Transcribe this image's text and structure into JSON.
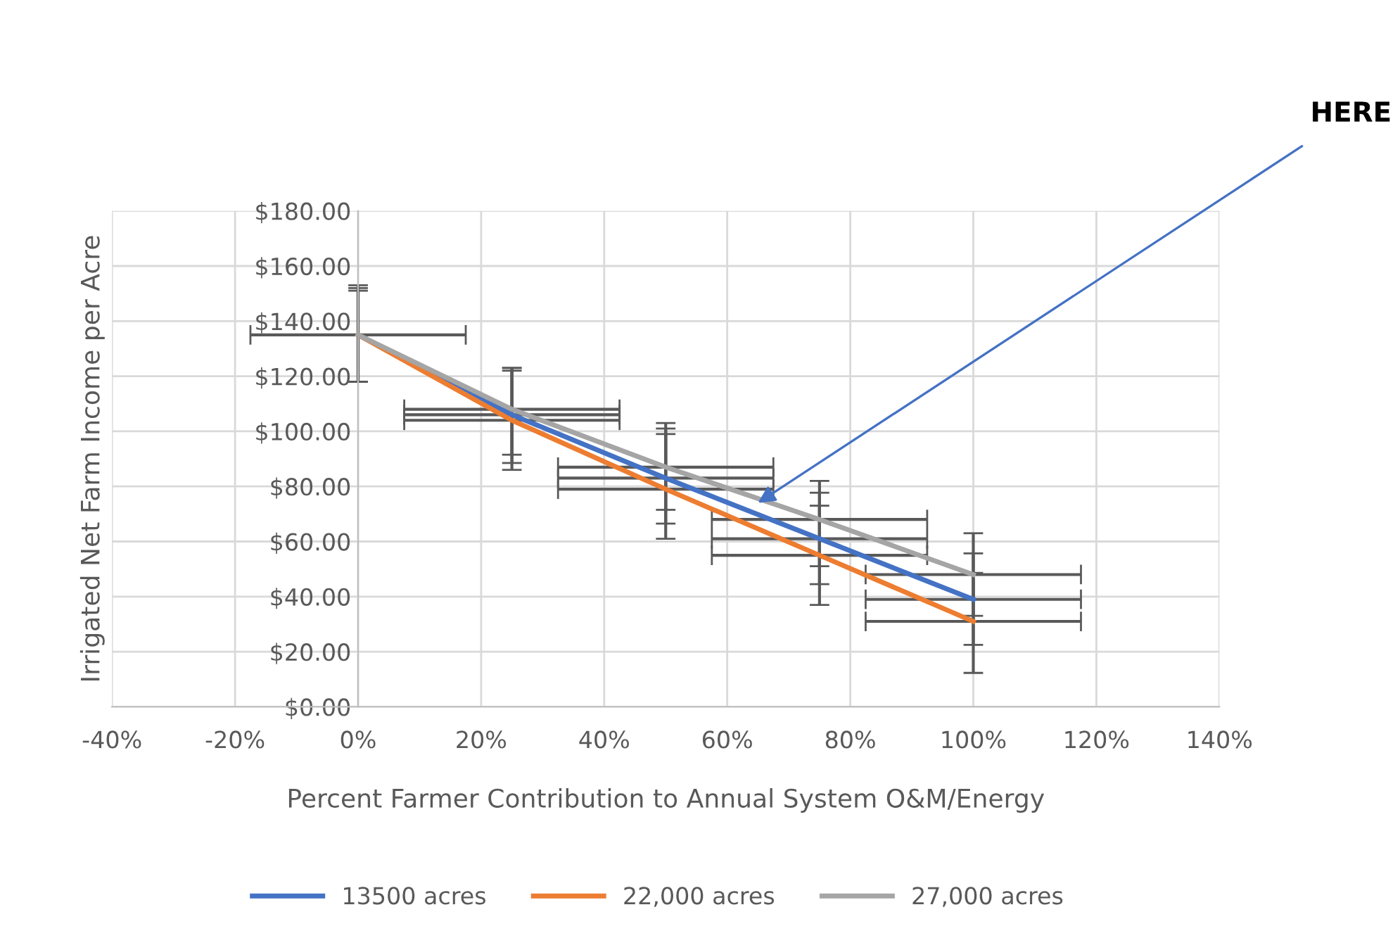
{
  "chart_data": {
    "type": "line",
    "xlabel": "Percent Farmer Contribution to Annual System O&M/Energy",
    "ylabel": "Irrigated Net Farm Income per Acre",
    "x": [
      0,
      25,
      50,
      75,
      100
    ],
    "series": [
      {
        "name": "13500 acres",
        "color": "#4472c4",
        "values": [
          135,
          106,
          83,
          61,
          39
        ],
        "errors": [
          [
            118,
            152
          ],
          [
            88.5,
            123
          ],
          [
            66.5,
            101
          ],
          [
            44.5,
            77.7
          ],
          [
            22.5,
            55.7
          ]
        ],
        "xerrors": [
          null,
          17.5,
          17.5,
          17.5,
          17.5
        ]
      },
      {
        "name": "22,000 acres",
        "color": "#ed7d31",
        "values": [
          135,
          104,
          79,
          55,
          31
        ],
        "errors": [
          [
            118,
            151
          ],
          [
            86,
            122
          ],
          [
            61,
            99
          ],
          [
            37,
            73
          ],
          [
            12.3,
            48.6
          ]
        ],
        "xerrors": [
          null,
          17.5,
          17.5,
          17.5,
          17.5
        ]
      },
      {
        "name": "27,000 acres",
        "color": "#a5a5a5",
        "values": [
          135,
          108,
          87,
          68,
          48
        ],
        "errors": [
          [
            118,
            153
          ],
          [
            91.5,
            123
          ],
          [
            71.5,
            103
          ],
          [
            51,
            82
          ],
          [
            33,
            63
          ]
        ],
        "xerrors": [
          17.5,
          17.5,
          17.5,
          17.5,
          17.5
        ]
      }
    ],
    "xlim": [
      -40,
      140
    ],
    "xticks": [
      {
        "value": -40,
        "label": "-40%"
      },
      {
        "value": -20,
        "label": "-20%"
      },
      {
        "value": 0,
        "label": "0%"
      },
      {
        "value": 20,
        "label": "20%"
      },
      {
        "value": 40,
        "label": "40%"
      },
      {
        "value": 60,
        "label": "60%"
      },
      {
        "value": 80,
        "label": "80%"
      },
      {
        "value": 100,
        "label": "100%"
      },
      {
        "value": 120,
        "label": "120%"
      },
      {
        "value": 140,
        "label": "140%"
      }
    ],
    "ylim": [
      0,
      180
    ],
    "yticks": [
      {
        "value": 0,
        "label": "$0.00"
      },
      {
        "value": 20,
        "label": "$20.00"
      },
      {
        "value": 40,
        "label": "$40.00"
      },
      {
        "value": 60,
        "label": "$60.00"
      },
      {
        "value": 80,
        "label": "$80.00"
      },
      {
        "value": 100,
        "label": "$100.00"
      },
      {
        "value": 120,
        "label": "$120.00"
      },
      {
        "value": 140,
        "label": "$140.00"
      },
      {
        "value": 160,
        "label": "$160.00"
      },
      {
        "value": 180,
        "label": "$180.00"
      }
    ],
    "annotations": [
      {
        "text": "HERE",
        "x": 65,
        "y": 74
      }
    ],
    "grid": true,
    "legend": "bottom",
    "marker": "none",
    "line_style": "solid"
  }
}
